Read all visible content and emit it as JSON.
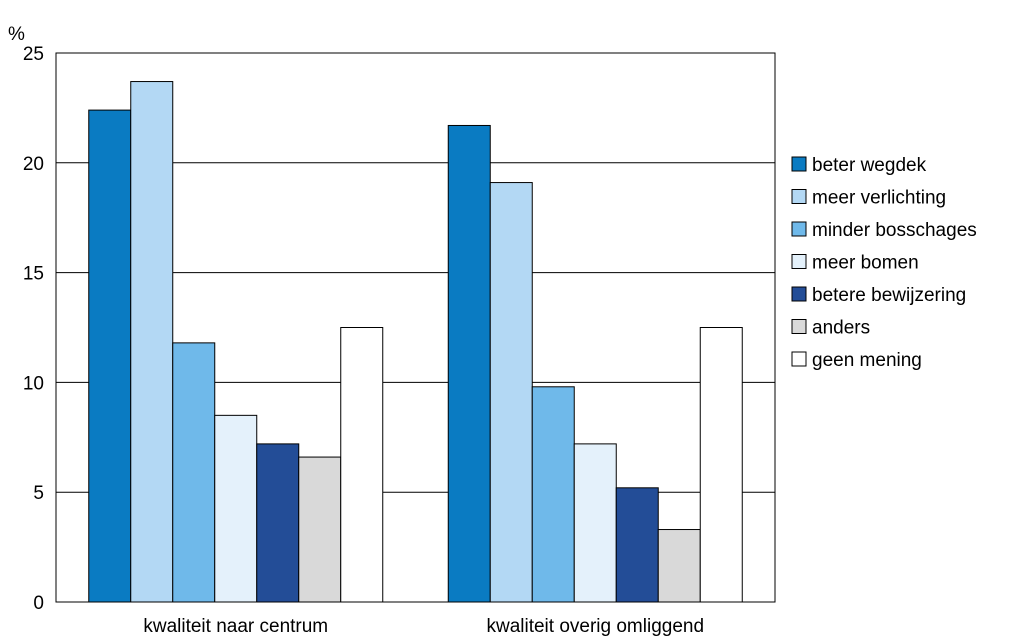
{
  "chart_data": {
    "type": "bar",
    "ylabel": "%",
    "xlabel": "",
    "ylim": [
      0,
      25
    ],
    "yticks": [
      0,
      5,
      10,
      15,
      20,
      25
    ],
    "grid": true,
    "legend_position": "right",
    "categories": [
      "kwaliteit naar centrum",
      "kwaliteit overig omliggend"
    ],
    "series": [
      {
        "name": "beter wegdek",
        "color": "#0a7bc2",
        "values": [
          22.4,
          21.7
        ]
      },
      {
        "name": "meer verlichting",
        "color": "#b3d8f4",
        "values": [
          23.7,
          19.1
        ]
      },
      {
        "name": "minder bosschages",
        "color": "#6fb9ea",
        "values": [
          11.8,
          9.8
        ]
      },
      {
        "name": "meer bomen",
        "color": "#e4f1fb",
        "values": [
          8.5,
          7.2
        ]
      },
      {
        "name": "betere bewijzering",
        "color": "#234d97",
        "values": [
          7.2,
          5.2
        ]
      },
      {
        "name": "anders",
        "color": "#d9d9d9",
        "values": [
          6.6,
          3.3
        ]
      },
      {
        "name": "geen mening",
        "color": "#ffffff",
        "values": [
          12.5,
          12.5
        ]
      }
    ]
  }
}
